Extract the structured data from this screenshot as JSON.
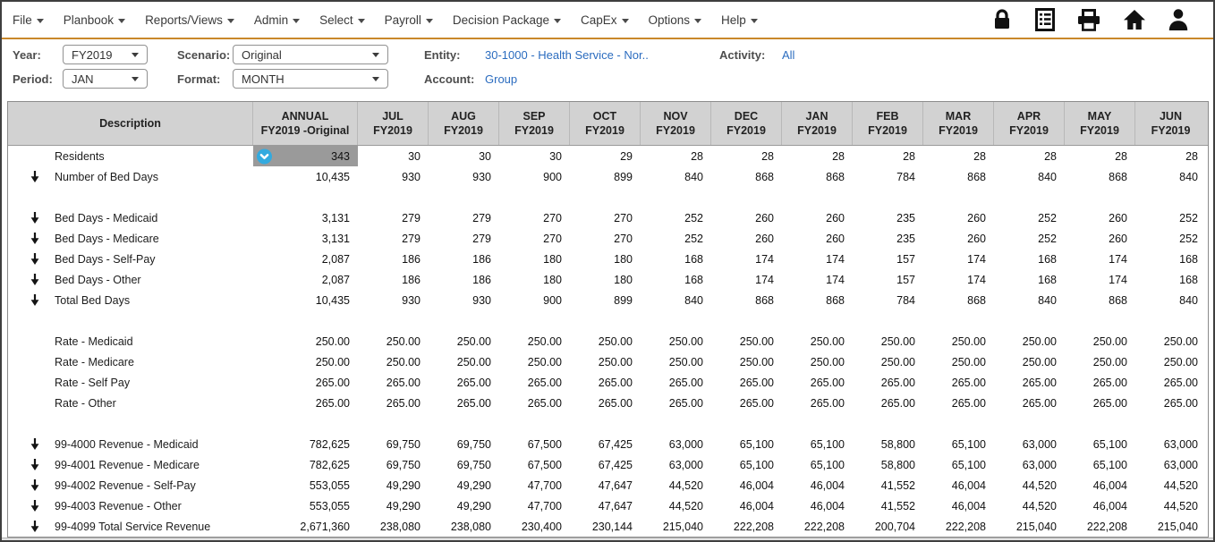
{
  "menu": {
    "items": [
      {
        "label": "File"
      },
      {
        "label": "Planbook"
      },
      {
        "label": "Reports/Views"
      },
      {
        "label": "Admin"
      },
      {
        "label": "Select"
      },
      {
        "label": "Payroll"
      },
      {
        "label": "Decision Package"
      },
      {
        "label": "CapEx"
      },
      {
        "label": "Options"
      },
      {
        "label": "Help"
      }
    ],
    "icons": [
      {
        "name": "lock-icon"
      },
      {
        "name": "report-icon"
      },
      {
        "name": "print-icon"
      },
      {
        "name": "home-icon"
      },
      {
        "name": "user-icon"
      }
    ]
  },
  "filters": {
    "year": {
      "label": "Year:",
      "value": "FY2019"
    },
    "scenario": {
      "label": "Scenario:",
      "value": "Original"
    },
    "period": {
      "label": "Period:",
      "value": "JAN"
    },
    "format": {
      "label": "Format:",
      "value": "MONTH"
    },
    "entity": {
      "label": "Entity:",
      "value": "30-1000 - Health Service - Nor.."
    },
    "activity": {
      "label": "Activity:",
      "value": "All"
    },
    "account": {
      "label": "Account:",
      "value": "Group"
    }
  },
  "table": {
    "columns": [
      {
        "title": "Description"
      },
      {
        "title": "ANNUAL",
        "subtitle": "FY2019 -Original"
      },
      {
        "title": "JUL",
        "subtitle": "FY2019"
      },
      {
        "title": "AUG",
        "subtitle": "FY2019"
      },
      {
        "title": "SEP",
        "subtitle": "FY2019"
      },
      {
        "title": "OCT",
        "subtitle": "FY2019"
      },
      {
        "title": "NOV",
        "subtitle": "FY2019"
      },
      {
        "title": "DEC",
        "subtitle": "FY2019"
      },
      {
        "title": "JAN",
        "subtitle": "FY2019"
      },
      {
        "title": "FEB",
        "subtitle": "FY2019"
      },
      {
        "title": "MAR",
        "subtitle": "FY2019"
      },
      {
        "title": "APR",
        "subtitle": "FY2019"
      },
      {
        "title": "MAY",
        "subtitle": "FY2019"
      },
      {
        "title": "JUN",
        "subtitle": "FY2019"
      }
    ],
    "selected_cell": {
      "row": "Residents",
      "column": "ANNUAL"
    },
    "rows": [
      {
        "label": "Residents",
        "arrow": false,
        "selected": 0,
        "values": [
          "343",
          "30",
          "30",
          "30",
          "29",
          "28",
          "28",
          "28",
          "28",
          "28",
          "28",
          "28",
          "28"
        ]
      },
      {
        "label": "Number of Bed Days",
        "arrow": true,
        "values": [
          "10,435",
          "930",
          "930",
          "900",
          "899",
          "840",
          "868",
          "868",
          "784",
          "868",
          "840",
          "868",
          "840"
        ]
      },
      {
        "blank": true
      },
      {
        "label": "Bed Days - Medicaid",
        "arrow": true,
        "values": [
          "3,131",
          "279",
          "279",
          "270",
          "270",
          "252",
          "260",
          "260",
          "235",
          "260",
          "252",
          "260",
          "252"
        ]
      },
      {
        "label": "Bed Days - Medicare",
        "arrow": true,
        "values": [
          "3,131",
          "279",
          "279",
          "270",
          "270",
          "252",
          "260",
          "260",
          "235",
          "260",
          "252",
          "260",
          "252"
        ]
      },
      {
        "label": "Bed Days - Self-Pay",
        "arrow": true,
        "values": [
          "2,087",
          "186",
          "186",
          "180",
          "180",
          "168",
          "174",
          "174",
          "157",
          "174",
          "168",
          "174",
          "168"
        ]
      },
      {
        "label": "Bed Days - Other",
        "arrow": true,
        "values": [
          "2,087",
          "186",
          "186",
          "180",
          "180",
          "168",
          "174",
          "174",
          "157",
          "174",
          "168",
          "174",
          "168"
        ]
      },
      {
        "label": "Total Bed Days",
        "arrow": true,
        "values": [
          "10,435",
          "930",
          "930",
          "900",
          "899",
          "840",
          "868",
          "868",
          "784",
          "868",
          "840",
          "868",
          "840"
        ]
      },
      {
        "blank": true
      },
      {
        "label": "Rate - Medicaid",
        "arrow": false,
        "values": [
          "250.00",
          "250.00",
          "250.00",
          "250.00",
          "250.00",
          "250.00",
          "250.00",
          "250.00",
          "250.00",
          "250.00",
          "250.00",
          "250.00",
          "250.00"
        ]
      },
      {
        "label": "Rate - Medicare",
        "arrow": false,
        "values": [
          "250.00",
          "250.00",
          "250.00",
          "250.00",
          "250.00",
          "250.00",
          "250.00",
          "250.00",
          "250.00",
          "250.00",
          "250.00",
          "250.00",
          "250.00"
        ]
      },
      {
        "label": "Rate - Self Pay",
        "arrow": false,
        "values": [
          "265.00",
          "265.00",
          "265.00",
          "265.00",
          "265.00",
          "265.00",
          "265.00",
          "265.00",
          "265.00",
          "265.00",
          "265.00",
          "265.00",
          "265.00"
        ]
      },
      {
        "label": "Rate - Other",
        "arrow": false,
        "values": [
          "265.00",
          "265.00",
          "265.00",
          "265.00",
          "265.00",
          "265.00",
          "265.00",
          "265.00",
          "265.00",
          "265.00",
          "265.00",
          "265.00",
          "265.00"
        ]
      },
      {
        "blank": true
      },
      {
        "label": "99-4000 Revenue - Medicaid",
        "arrow": true,
        "values": [
          "782,625",
          "69,750",
          "69,750",
          "67,500",
          "67,425",
          "63,000",
          "65,100",
          "65,100",
          "58,800",
          "65,100",
          "63,000",
          "65,100",
          "63,000"
        ]
      },
      {
        "label": "99-4001 Revenue - Medicare",
        "arrow": true,
        "values": [
          "782,625",
          "69,750",
          "69,750",
          "67,500",
          "67,425",
          "63,000",
          "65,100",
          "65,100",
          "58,800",
          "65,100",
          "63,000",
          "65,100",
          "63,000"
        ]
      },
      {
        "label": "99-4002 Revenue - Self-Pay",
        "arrow": true,
        "values": [
          "553,055",
          "49,290",
          "49,290",
          "47,700",
          "47,647",
          "44,520",
          "46,004",
          "46,004",
          "41,552",
          "46,004",
          "44,520",
          "46,004",
          "44,520"
        ]
      },
      {
        "label": "99-4003 Revenue - Other",
        "arrow": true,
        "values": [
          "553,055",
          "49,290",
          "49,290",
          "47,700",
          "47,647",
          "44,520",
          "46,004",
          "46,004",
          "41,552",
          "46,004",
          "44,520",
          "46,004",
          "44,520"
        ]
      },
      {
        "label": "99-4099 Total Service Revenue",
        "arrow": true,
        "values": [
          "2,671,360",
          "238,080",
          "238,080",
          "230,400",
          "230,144",
          "215,040",
          "222,208",
          "222,208",
          "200,704",
          "222,208",
          "215,040",
          "222,208",
          "215,040"
        ]
      }
    ]
  },
  "colors": {
    "accent_orange": "#c9882b",
    "link_blue": "#2b6cbf",
    "header_bg": "#d2d2d2",
    "selected_cell_bg": "#9a9a9a",
    "badge_blue": "#33aadf"
  }
}
